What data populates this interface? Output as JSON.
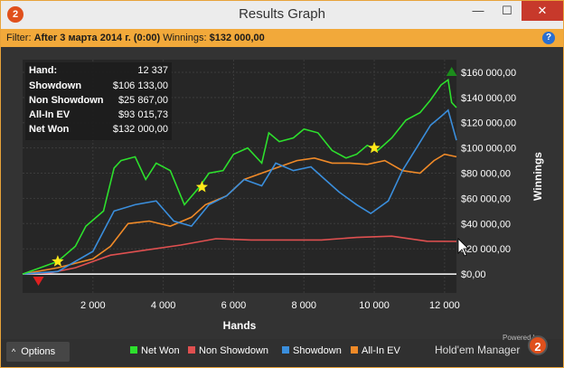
{
  "window": {
    "title": "Results Graph",
    "app_icon": "holdem-manager-logo",
    "controls": {
      "minimize": "—",
      "maximize": "☐",
      "close": "✕"
    }
  },
  "filter": {
    "label": "Filter:",
    "text": "After 3 марта 2014 г. (0:00)",
    "winnings_label": "Winnings:",
    "winnings_value": "$132 000,00",
    "help": "?"
  },
  "stats": [
    {
      "label": "Hand:",
      "value": "12 337"
    },
    {
      "label": "Showdown",
      "value": "$106 133,00"
    },
    {
      "label": "Non Showdown",
      "value": "$25 867,00"
    },
    {
      "label": "All-In EV",
      "value": "$93 015,73"
    },
    {
      "label": "Net Won",
      "value": "$132 000,00"
    }
  ],
  "chart_data": {
    "type": "line",
    "xlabel": "Hands",
    "ylabel": "Winnings",
    "xlim": [
      0,
      12337
    ],
    "ylim": [
      -15000,
      170000
    ],
    "x_ticks": [
      "2 000",
      "4 000",
      "6 000",
      "8 000",
      "10 000",
      "12 000"
    ],
    "x_tick_values": [
      2000,
      4000,
      6000,
      8000,
      10000,
      12000
    ],
    "y_ticks": [
      "$0,00",
      "$20 000,00",
      "$40 000,00",
      "$60 000,00",
      "$80 000,00",
      "$100 000,00",
      "$120 000,00",
      "$140 000,00",
      "$160 000,00"
    ],
    "y_tick_values": [
      0,
      20000,
      40000,
      60000,
      80000,
      100000,
      120000,
      140000,
      160000
    ],
    "legend_position": "bottom",
    "series": [
      {
        "name": "Net Won",
        "color": "#2de02d",
        "x": [
          0,
          500,
          1000,
          1500,
          1800,
          2300,
          2600,
          2800,
          3200,
          3500,
          3800,
          4200,
          4600,
          5000,
          5300,
          5700,
          6000,
          6400,
          6800,
          7000,
          7300,
          7700,
          8000,
          8400,
          8800,
          9200,
          9500,
          9800,
          10100,
          10500,
          10900,
          11300,
          11600,
          11900,
          12100,
          12200,
          12337
        ],
        "values": [
          0,
          5000,
          10000,
          22000,
          38000,
          50000,
          84000,
          90000,
          93000,
          75000,
          88000,
          82000,
          55000,
          68000,
          80000,
          82000,
          95000,
          100000,
          88000,
          112000,
          105000,
          108000,
          115000,
          112000,
          98000,
          92000,
          95000,
          102000,
          98000,
          108000,
          122000,
          128000,
          138000,
          150000,
          154000,
          136000,
          132000
        ]
      },
      {
        "name": "Non Showdown",
        "color": "#e05050",
        "x": [
          0,
          800,
          1500,
          2500,
          3500,
          4500,
          5500,
          6500,
          7500,
          8500,
          9500,
          10500,
          11500,
          12337
        ],
        "values": [
          0,
          1000,
          5000,
          15000,
          19000,
          23000,
          28000,
          27000,
          27000,
          27000,
          29000,
          30000,
          26000,
          25867
        ]
      },
      {
        "name": "Showdown",
        "color": "#3a8edc",
        "x": [
          0,
          1000,
          2000,
          2600,
          3200,
          3800,
          4300,
          4800,
          5300,
          5800,
          6300,
          6800,
          7200,
          7700,
          8200,
          8600,
          9000,
          9500,
          9900,
          10400,
          10800,
          11200,
          11600,
          11900,
          12100,
          12337
        ],
        "values": [
          0,
          2000,
          18000,
          50000,
          55000,
          58000,
          42000,
          38000,
          55000,
          62000,
          75000,
          70000,
          88000,
          82000,
          85000,
          75000,
          65000,
          55000,
          48000,
          58000,
          82000,
          100000,
          118000,
          125000,
          130000,
          106133
        ]
      },
      {
        "name": "All-In EV",
        "color": "#f08a28",
        "x": [
          0,
          1000,
          2000,
          2500,
          3000,
          3600,
          4200,
          4800,
          5200,
          5800,
          6300,
          6800,
          7300,
          7800,
          8300,
          8800,
          9300,
          9800,
          10300,
          10800,
          11300,
          11700,
          12000,
          12337
        ],
        "values": [
          0,
          5000,
          12000,
          22000,
          40000,
          42000,
          38000,
          45000,
          55000,
          62000,
          75000,
          80000,
          85000,
          90000,
          92000,
          88000,
          88000,
          87000,
          90000,
          82000,
          80000,
          90000,
          95000,
          93015
        ]
      }
    ]
  },
  "markers": [
    {
      "type": "star",
      "x": 1000,
      "y": 10000
    },
    {
      "type": "star",
      "x": 5100,
      "y": 69000
    },
    {
      "type": "star",
      "x": 10000,
      "y": 100000
    },
    {
      "type": "min-triangle",
      "x": 450,
      "y": -5000
    },
    {
      "type": "max-triangle",
      "x": 12200,
      "y": 160000
    }
  ],
  "bottom": {
    "options_label": "Options",
    "powered_by": "Powered by",
    "brand": "Hold'em Manager",
    "brand_logo": "2"
  }
}
